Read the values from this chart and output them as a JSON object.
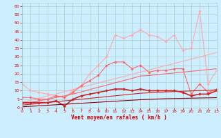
{
  "x": [
    0,
    1,
    2,
    3,
    4,
    5,
    6,
    7,
    8,
    9,
    10,
    11,
    12,
    13,
    14,
    15,
    16,
    17,
    18,
    19,
    20,
    21,
    22,
    23
  ],
  "series": [
    {
      "color": "#ffaaaa",
      "linewidth": 0.8,
      "marker": "D",
      "markersize": 1.8,
      "y": [
        14,
        10,
        9,
        8,
        7,
        6,
        10,
        13,
        20,
        25,
        30,
        43,
        41,
        43,
        46,
        43,
        42,
        39,
        43,
        34,
        35,
        57,
        14,
        22
      ]
    },
    {
      "color": "#ffaaaa",
      "linewidth": 0.8,
      "marker": null,
      "markersize": 0,
      "y": [
        3.0,
        4.3,
        5.6,
        6.9,
        8.1,
        9.4,
        10.7,
        12.0,
        13.3,
        14.6,
        15.9,
        17.1,
        18.4,
        19.7,
        21.0,
        22.3,
        23.6,
        24.9,
        26.1,
        27.4,
        28.7,
        30.0,
        31.3,
        32.6
      ]
    },
    {
      "color": "#ff6666",
      "linewidth": 0.8,
      "marker": "D",
      "markersize": 1.8,
      "y": [
        6,
        6,
        5,
        5,
        7,
        6,
        9,
        13,
        16,
        19,
        25,
        27,
        27,
        23,
        25,
        21,
        22,
        22,
        23,
        23,
        8,
        14,
        9,
        11
      ]
    },
    {
      "color": "#ff6666",
      "linewidth": 0.8,
      "marker": null,
      "markersize": 0,
      "y": [
        2.0,
        3.0,
        4.0,
        5.0,
        6.0,
        7.0,
        8.0,
        9.3,
        10.7,
        12.0,
        13.3,
        14.7,
        16.0,
        17.3,
        18.7,
        19.0,
        19.5,
        20.0,
        20.5,
        21.0,
        21.5,
        22.0,
        22.5,
        23.0
      ]
    },
    {
      "color": "#cc2222",
      "linewidth": 1.2,
      "marker": "D",
      "markersize": 1.8,
      "y": [
        3,
        3,
        3,
        3,
        4,
        1,
        5,
        7,
        8,
        9,
        10,
        11,
        11,
        10,
        11,
        10,
        10,
        10,
        10,
        9,
        7,
        8,
        8,
        10
      ]
    },
    {
      "color": "#cc2222",
      "linewidth": 0.8,
      "marker": null,
      "markersize": 0,
      "y": [
        1.5,
        2.0,
        2.5,
        3.0,
        3.5,
        4.0,
        4.5,
        5.0,
        5.5,
        6.0,
        6.5,
        7.0,
        7.5,
        8.0,
        8.5,
        8.8,
        9.0,
        9.3,
        9.5,
        9.7,
        9.9,
        10.1,
        10.3,
        10.5
      ]
    },
    {
      "color": "#880000",
      "linewidth": 0.8,
      "marker": null,
      "markersize": 0,
      "y": [
        0.5,
        0.8,
        1.1,
        1.4,
        1.7,
        2.0,
        2.3,
        2.6,
        2.9,
        3.2,
        3.5,
        3.8,
        4.1,
        4.4,
        4.7,
        4.9,
        5.1,
        5.3,
        5.4,
        5.5,
        5.6,
        5.7,
        5.8,
        5.9
      ]
    }
  ],
  "xlim": [
    0,
    23
  ],
  "ylim": [
    0,
    62
  ],
  "yticks": [
    0,
    5,
    10,
    15,
    20,
    25,
    30,
    35,
    40,
    45,
    50,
    55,
    60
  ],
  "xticks": [
    0,
    1,
    2,
    3,
    4,
    5,
    6,
    7,
    8,
    9,
    10,
    11,
    12,
    13,
    14,
    15,
    16,
    17,
    18,
    19,
    20,
    21,
    22,
    23
  ],
  "xlabel": "Vent moyen/en rafales ( km/h )",
  "background_color": "#cceeff",
  "grid_color": "#aacccc",
  "tick_color": "#cc0000",
  "label_color": "#cc0000"
}
